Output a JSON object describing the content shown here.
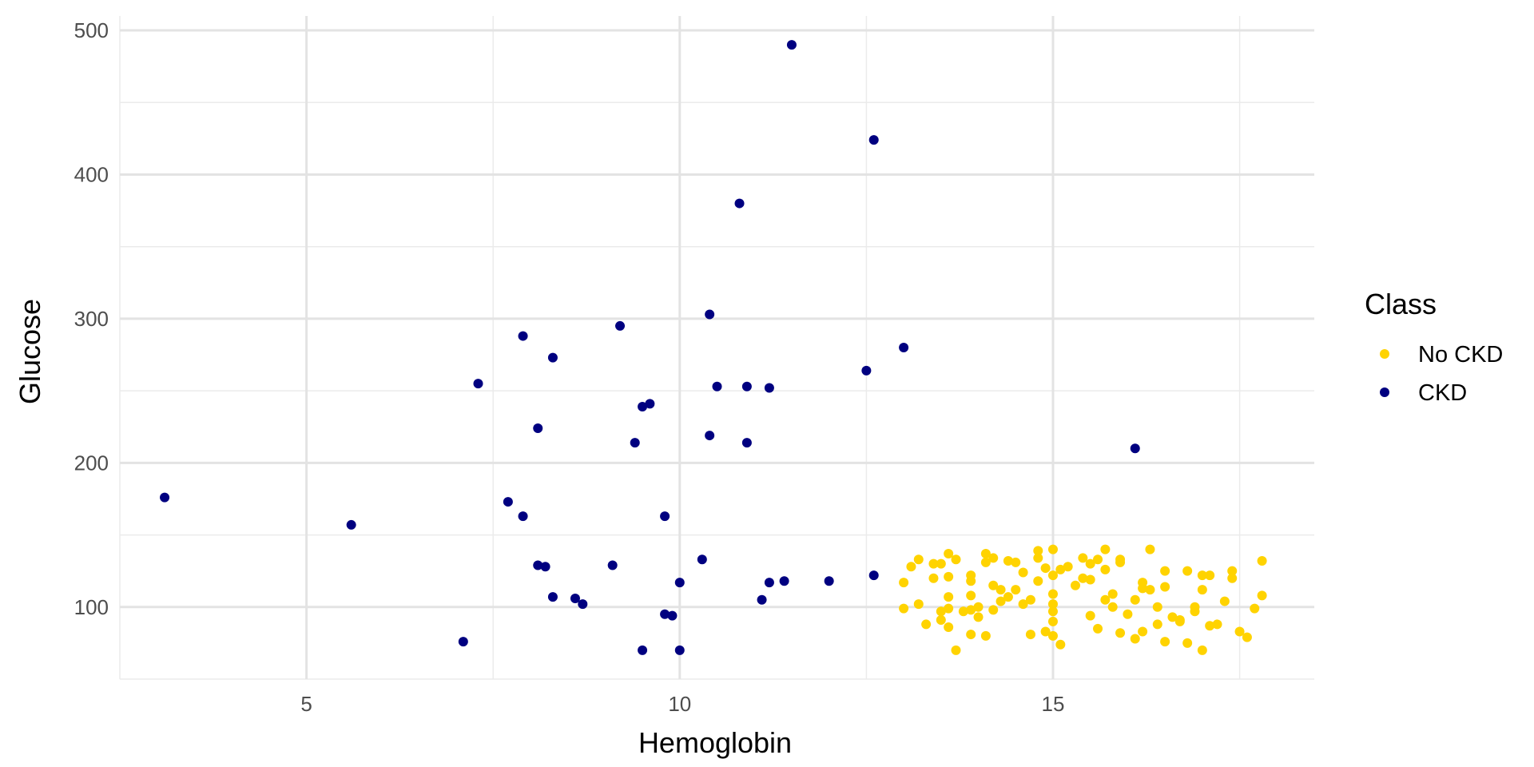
{
  "chart_data": {
    "type": "scatter",
    "title": "",
    "xlabel": "Hemoglobin",
    "ylabel": "Glucose",
    "xlim": [
      2.5,
      18.5
    ],
    "ylim": [
      50,
      510
    ],
    "x_ticks": [
      5,
      10,
      15
    ],
    "x_tick_labels": [
      "5",
      "10",
      "15"
    ],
    "y_ticks": [
      100,
      200,
      300,
      400,
      500
    ],
    "y_tick_labels": [
      "100",
      "200",
      "300",
      "400",
      "500"
    ],
    "grid": true,
    "legend": {
      "title": "Class",
      "position": "right"
    },
    "series": [
      {
        "name": "No CKD",
        "color": "#FFD300",
        "points": [
          [
            13.0,
            117
          ],
          [
            13.1,
            128
          ],
          [
            13.2,
            133
          ],
          [
            13.0,
            99
          ],
          [
            13.2,
            102
          ],
          [
            13.3,
            88
          ],
          [
            13.4,
            120
          ],
          [
            13.4,
            130
          ],
          [
            13.5,
            130
          ],
          [
            13.5,
            97
          ],
          [
            13.5,
            91
          ],
          [
            13.6,
            137
          ],
          [
            13.6,
            121
          ],
          [
            13.6,
            107
          ],
          [
            13.6,
            99
          ],
          [
            13.6,
            86
          ],
          [
            13.7,
            133
          ],
          [
            13.7,
            70
          ],
          [
            13.8,
            97
          ],
          [
            13.9,
            98
          ],
          [
            13.9,
            122
          ],
          [
            13.9,
            118
          ],
          [
            13.9,
            108
          ],
          [
            13.9,
            81
          ],
          [
            14.0,
            100
          ],
          [
            14.0,
            93
          ],
          [
            14.1,
            137
          ],
          [
            14.1,
            131
          ],
          [
            14.1,
            80
          ],
          [
            14.2,
            134
          ],
          [
            14.2,
            115
          ],
          [
            14.2,
            98
          ],
          [
            14.3,
            112
          ],
          [
            14.3,
            104
          ],
          [
            14.4,
            132
          ],
          [
            14.4,
            107
          ],
          [
            14.5,
            131
          ],
          [
            14.5,
            112
          ],
          [
            14.6,
            124
          ],
          [
            14.6,
            102
          ],
          [
            14.7,
            105
          ],
          [
            14.7,
            81
          ],
          [
            14.8,
            139
          ],
          [
            14.8,
            134
          ],
          [
            14.8,
            118
          ],
          [
            14.9,
            127
          ],
          [
            14.9,
            83
          ],
          [
            15.0,
            140
          ],
          [
            15.0,
            122
          ],
          [
            15.0,
            109
          ],
          [
            15.0,
            102
          ],
          [
            15.0,
            97
          ],
          [
            15.0,
            90
          ],
          [
            15.0,
            80
          ],
          [
            15.1,
            126
          ],
          [
            15.1,
            74
          ],
          [
            15.2,
            128
          ],
          [
            15.3,
            115
          ],
          [
            15.4,
            134
          ],
          [
            15.4,
            120
          ],
          [
            15.5,
            130
          ],
          [
            15.5,
            119
          ],
          [
            15.5,
            94
          ],
          [
            15.6,
            133
          ],
          [
            15.6,
            85
          ],
          [
            15.7,
            140
          ],
          [
            15.7,
            126
          ],
          [
            15.7,
            105
          ],
          [
            15.8,
            109
          ],
          [
            15.8,
            100
          ],
          [
            15.9,
            133
          ],
          [
            15.9,
            131
          ],
          [
            15.9,
            82
          ],
          [
            16.0,
            95
          ],
          [
            16.1,
            105
          ],
          [
            16.1,
            78
          ],
          [
            16.2,
            113
          ],
          [
            16.2,
            117
          ],
          [
            16.2,
            83
          ],
          [
            16.3,
            140
          ],
          [
            16.3,
            112
          ],
          [
            16.4,
            100
          ],
          [
            16.4,
            88
          ],
          [
            16.5,
            125
          ],
          [
            16.5,
            114
          ],
          [
            16.5,
            76
          ],
          [
            16.6,
            93
          ],
          [
            16.7,
            91
          ],
          [
            16.7,
            90
          ],
          [
            16.8,
            125
          ],
          [
            16.8,
            75
          ],
          [
            16.9,
            100
          ],
          [
            16.9,
            97
          ],
          [
            17.0,
            122
          ],
          [
            17.0,
            112
          ],
          [
            17.0,
            70
          ],
          [
            17.1,
            122
          ],
          [
            17.1,
            87
          ],
          [
            17.2,
            88
          ],
          [
            17.3,
            104
          ],
          [
            17.4,
            125
          ],
          [
            17.4,
            120
          ],
          [
            17.5,
            83
          ],
          [
            17.6,
            79
          ],
          [
            17.7,
            99
          ],
          [
            17.8,
            132
          ],
          [
            17.8,
            108
          ]
        ]
      },
      {
        "name": "CKD",
        "color": "#000080",
        "points": [
          [
            3.1,
            176
          ],
          [
            5.6,
            157
          ],
          [
            7.1,
            76
          ],
          [
            7.3,
            255
          ],
          [
            7.7,
            173
          ],
          [
            7.9,
            288
          ],
          [
            7.9,
            163
          ],
          [
            8.1,
            224
          ],
          [
            8.1,
            129
          ],
          [
            8.2,
            128
          ],
          [
            8.3,
            273
          ],
          [
            8.3,
            107
          ],
          [
            8.6,
            106
          ],
          [
            8.7,
            102
          ],
          [
            9.1,
            129
          ],
          [
            9.2,
            295
          ],
          [
            9.4,
            214
          ],
          [
            9.5,
            239
          ],
          [
            9.5,
            70
          ],
          [
            9.6,
            241
          ],
          [
            9.8,
            163
          ],
          [
            9.8,
            95
          ],
          [
            9.9,
            94
          ],
          [
            10.0,
            117
          ],
          [
            10.0,
            70
          ],
          [
            10.3,
            133
          ],
          [
            10.4,
            303
          ],
          [
            10.4,
            219
          ],
          [
            10.5,
            253
          ],
          [
            10.8,
            380
          ],
          [
            10.9,
            253
          ],
          [
            10.9,
            214
          ],
          [
            11.1,
            105
          ],
          [
            11.2,
            252
          ],
          [
            11.2,
            117
          ],
          [
            11.4,
            118
          ],
          [
            11.5,
            490
          ],
          [
            12.0,
            118
          ],
          [
            12.5,
            264
          ],
          [
            12.6,
            424
          ],
          [
            12.6,
            122
          ],
          [
            13.0,
            280
          ],
          [
            16.1,
            210
          ]
        ]
      }
    ]
  }
}
